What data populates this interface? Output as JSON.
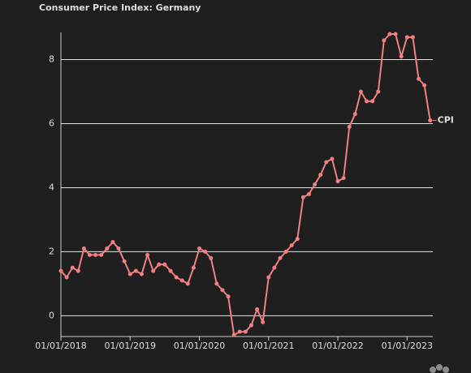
{
  "chart_data": {
    "type": "line",
    "title": "Consumer Price Index: Germany",
    "x": [
      "2018-01-01",
      "2018-02-01",
      "2018-03-01",
      "2018-04-01",
      "2018-05-01",
      "2018-06-01",
      "2018-07-01",
      "2018-08-01",
      "2018-09-01",
      "2018-10-01",
      "2018-11-01",
      "2018-12-01",
      "2019-01-01",
      "2019-02-01",
      "2019-03-01",
      "2019-04-01",
      "2019-05-01",
      "2019-06-01",
      "2019-07-01",
      "2019-08-01",
      "2019-09-01",
      "2019-10-01",
      "2019-11-01",
      "2019-12-01",
      "2020-01-01",
      "2020-02-01",
      "2020-03-01",
      "2020-04-01",
      "2020-05-01",
      "2020-06-01",
      "2020-07-01",
      "2020-08-01",
      "2020-09-01",
      "2020-10-01",
      "2020-11-01",
      "2020-12-01",
      "2021-01-01",
      "2021-02-01",
      "2021-03-01",
      "2021-04-01",
      "2021-05-01",
      "2021-06-01",
      "2021-07-01",
      "2021-08-01",
      "2021-09-01",
      "2021-10-01",
      "2021-11-01",
      "2021-12-01",
      "2022-01-01",
      "2022-02-01",
      "2022-03-01",
      "2022-04-01",
      "2022-05-01",
      "2022-06-01",
      "2022-07-01",
      "2022-08-01",
      "2022-09-01",
      "2022-10-01",
      "2022-11-01",
      "2022-12-01",
      "2023-01-01",
      "2023-02-01",
      "2023-03-01",
      "2023-04-01",
      "2023-05-01"
    ],
    "series": [
      {
        "name": "CPI",
        "color": "#f08080",
        "values": [
          1.4,
          1.2,
          1.5,
          1.4,
          2.1,
          1.9,
          1.9,
          1.9,
          2.1,
          2.3,
          2.1,
          1.7,
          1.3,
          1.4,
          1.3,
          1.9,
          1.4,
          1.6,
          1.6,
          1.4,
          1.2,
          1.1,
          1.0,
          1.5,
          2.1,
          2.0,
          1.8,
          1.0,
          0.8,
          0.6,
          -0.6,
          -0.5,
          -0.5,
          -0.3,
          0.2,
          -0.2,
          1.2,
          1.5,
          1.8,
          2.0,
          2.2,
          2.4,
          3.7,
          3.8,
          4.1,
          4.4,
          4.8,
          4.9,
          4.2,
          4.3,
          5.9,
          6.3,
          7.0,
          6.7,
          6.7,
          7.0,
          8.6,
          8.8,
          8.8,
          8.1,
          8.7,
          8.7,
          7.4,
          7.2,
          6.1
        ]
      }
    ],
    "xlim": [
      "2018-01-01",
      "2023-05-15"
    ],
    "xticks": [
      {
        "value": "2018-01-01",
        "label": "01/01/2018"
      },
      {
        "value": "2019-01-01",
        "label": "01/01/2019"
      },
      {
        "value": "2020-01-01",
        "label": "01/01/2020"
      },
      {
        "value": "2021-01-01",
        "label": "01/01/2021"
      },
      {
        "value": "2022-01-01",
        "label": "01/01/2022"
      },
      {
        "value": "2023-01-01",
        "label": "01/01/2023"
      }
    ],
    "ylim": [
      -0.65,
      8.85
    ],
    "yticks": [
      0,
      2,
      4,
      6,
      8
    ],
    "grid": true
  }
}
